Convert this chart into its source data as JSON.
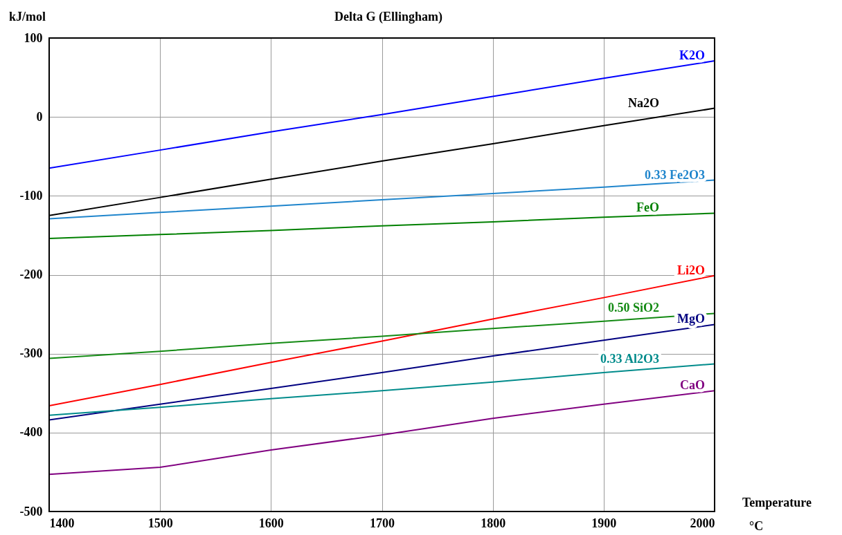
{
  "chart_data": {
    "type": "line",
    "title": "Delta G (Ellingham)",
    "xlabel": "Temperature °C",
    "ylabel": "kJ/mol",
    "x": [
      1400,
      1500,
      1600,
      1700,
      1800,
      1900,
      2000
    ],
    "series": [
      {
        "name": "K2O",
        "color": "#0000ff",
        "values": [
          -65,
          -42,
          -19,
          3,
          26,
          49,
          71
        ]
      },
      {
        "name": "Na2O",
        "color": "#000000",
        "values": [
          -125,
          -102,
          -79,
          -56,
          -34,
          -11,
          11
        ]
      },
      {
        "name": "0.33  Fe2O3",
        "color": "#1f85cc",
        "values": [
          -129,
          -121,
          -113,
          -105,
          -97,
          -89,
          -80
        ]
      },
      {
        "name": "FeO",
        "color": "#008000",
        "values": [
          -154,
          -149,
          -144,
          -138,
          -133,
          -127,
          -122
        ]
      },
      {
        "name": "Li2O",
        "color": "#ff0000",
        "values": [
          -366,
          -339,
          -311,
          -284,
          -256,
          -229,
          -201
        ]
      },
      {
        "name": "0.50  SiO2",
        "color": "#138a13",
        "values": [
          -306,
          -297,
          -287,
          -278,
          -268,
          -259,
          -249
        ]
      },
      {
        "name": "MgO",
        "color": "#000080",
        "values": [
          -384,
          -364,
          -344,
          -324,
          -303,
          -283,
          -263
        ]
      },
      {
        "name": "0.33  Al2O3",
        "color": "#008b8b",
        "values": [
          -378,
          -368,
          -357,
          -347,
          -336,
          -324,
          -313
        ]
      },
      {
        "name": "CaO",
        "color": "#800080",
        "values": [
          -453,
          -444,
          -422,
          -403,
          -382,
          -364,
          -347
        ]
      }
    ],
    "xlim": [
      1400,
      2000
    ],
    "xticks": [
      1400,
      1500,
      1600,
      1700,
      1800,
      1900,
      2000
    ],
    "ylim": [
      -500,
      100
    ],
    "yticks": [
      -500,
      -400,
      -300,
      -200,
      -100,
      0,
      100
    ],
    "grid": true,
    "legend": false,
    "marker": "none",
    "line_style": "solid"
  }
}
